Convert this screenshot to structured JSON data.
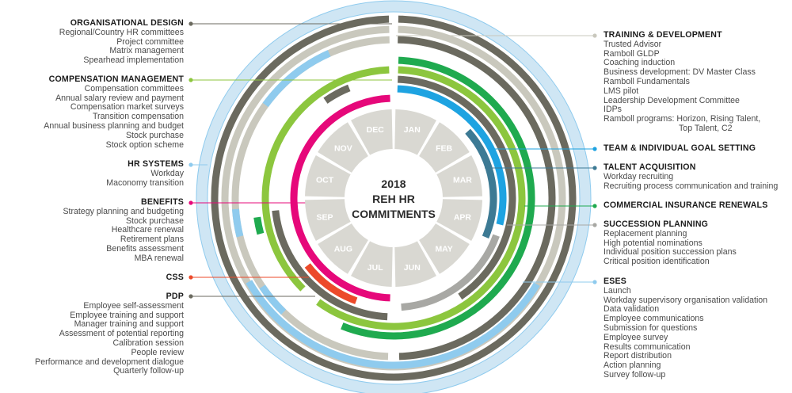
{
  "center": {
    "lines": [
      "2018",
      "REH HR",
      "COMMITMENTS"
    ]
  },
  "months": [
    "JAN",
    "FEB",
    "MAR",
    "APR",
    "MAY",
    "JUN",
    "JUL",
    "AUG",
    "SEP",
    "OCT",
    "NOV",
    "DEC"
  ],
  "colors": {
    "outer_ring": "#cfe6f4",
    "dark_gray": "#6b6a5f",
    "light_gray": "#c9c8bd",
    "sky_blue": "#8fcbee",
    "green": "#1faa4f",
    "lime": "#8cc63e",
    "blue": "#1ea3e1",
    "steel_blue": "#3d7a94",
    "mid_gray": "#a8a8a4",
    "magenta": "#e6087a",
    "red": "#ec4a2a",
    "month_fill": "#d9d8d2",
    "month_text": "#ffffff"
  },
  "left_blocks": [
    {
      "title": "ORGANISATIONAL DESIGN",
      "color": "#6b6a5f",
      "items": [
        "Regional/Country HR committees",
        "Project committee",
        "Matrix management",
        "Spearhead implementation"
      ]
    },
    {
      "title": "COMPENSATION MANAGEMENT",
      "color": "#8cc63e",
      "items": [
        "Compensation committees",
        "Annual salary review and payment",
        "Compensation market surveys",
        "Transition compensation",
        "Annual business planning and budget",
        "Stock purchase",
        "Stock option scheme"
      ]
    },
    {
      "title": "HR SYSTEMS",
      "color": "#8fcbee",
      "items": [
        "Workday",
        "Maconomy transition"
      ]
    },
    {
      "title": "BENEFITS",
      "color": "#e6087a",
      "items": [
        "Strategy planning and budgeting",
        "Stock purchase",
        "Healthcare renewal",
        "Retirement plans",
        "Benefits assessment",
        "MBA renewal"
      ]
    },
    {
      "title": "CSS",
      "color": "#ec4a2a",
      "items": []
    },
    {
      "title": "PDP",
      "color": "#6b6a5f",
      "items": [
        "Employee self-assessment",
        "Employee training and support",
        "Manager training and support",
        "Assessment of potential reporting",
        "Calibration session",
        "People review",
        "Performance and development dialogue",
        "Quarterly follow-up"
      ]
    }
  ],
  "right_blocks": [
    {
      "title": "TRAINING & DEVELOPMENT",
      "color": "#c9c8bd",
      "items": [
        "Trusted Advisor",
        "Ramboll GLDP",
        "Coaching induction",
        "Business development: DV Master Class",
        "Ramboll Fundamentals",
        "LMS pilot",
        "Leadership Development Committee",
        "IDPs",
        "Ramboll programs: Horizon, Rising Talent,",
        "Top Talent, C2"
      ]
    },
    {
      "title": "TEAM & INDIVIDUAL GOAL SETTING",
      "color": "#1ea3e1",
      "items": []
    },
    {
      "title": "TALENT ACQUISITION",
      "color": "#3d7a94",
      "items": [
        "Workday recruiting",
        "Recruiting process communication and training"
      ]
    },
    {
      "title": "COMMERCIAL INSURANCE RENEWALS",
      "color": "#1faa4f",
      "items": []
    },
    {
      "title": "SUCCESSION PLANNING",
      "color": "#a8a8a4",
      "items": [
        "Replacement planning",
        "High potential nominations",
        "Individual position succession plans",
        "Critical position identification"
      ]
    },
    {
      "title": "ESES",
      "color": "#8fcbee",
      "items": [
        "Launch",
        "Workday supervisory organisation validation",
        "Data validation",
        "Employee communications",
        "Submission for questions",
        "Employee survey",
        "Results communication",
        "Report distribution",
        "Action planning",
        "Survey follow-up"
      ]
    }
  ]
}
